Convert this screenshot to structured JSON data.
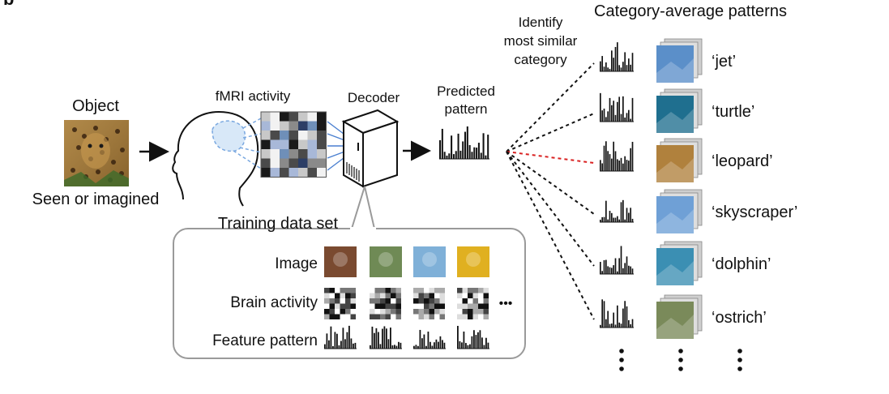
{
  "panel_letter": "b",
  "object": {
    "label": "Object",
    "caption": "Seen or imagined"
  },
  "fmri": {
    "label": "fMRI activity"
  },
  "decoder": {
    "label": "Decoder"
  },
  "predicted": {
    "label_line1": "Predicted",
    "label_line2": "pattern"
  },
  "identify": {
    "line1": "Identify",
    "line2": "most similar",
    "line3": "category"
  },
  "category_header": "Category-average patterns",
  "categories": [
    {
      "name": "‘jet’",
      "thumb_color": "#5b8fc9",
      "highlighted": false
    },
    {
      "name": "‘turtle’",
      "thumb_color": "#1f6f8f",
      "highlighted": false
    },
    {
      "name": "‘leopard’",
      "thumb_color": "#b0813d",
      "highlighted": true
    },
    {
      "name": "‘skyscraper’",
      "thumb_color": "#6fa0d6",
      "highlighted": false
    },
    {
      "name": "‘dolphin’",
      "thumb_color": "#3b8fb3",
      "highlighted": false
    },
    {
      "name": "‘ostrich’",
      "thumb_color": "#7a8a5a",
      "highlighted": false
    }
  ],
  "training": {
    "title": "Training data set",
    "row_image": "Image",
    "row_brain": "Brain activity",
    "row_feature": "Feature pattern",
    "thumb_colors": [
      "#7a4a30",
      "#6f8a55",
      "#7fb0d8",
      "#e0b020"
    ]
  },
  "ellipsis": "•••",
  "colors": {
    "highlight_line": "#d92020",
    "normal_line": "#111111",
    "frame": "#9a9a9a"
  }
}
